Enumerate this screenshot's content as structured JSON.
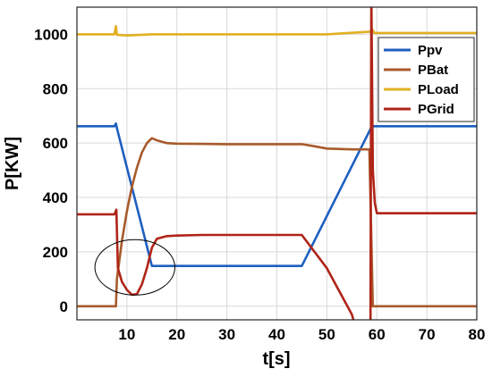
{
  "chart_data": {
    "type": "line",
    "title": "",
    "xlabel": "t[s]",
    "ylabel": "P[KW]",
    "xlim": [
      0,
      80
    ],
    "ylim": [
      -50,
      1100
    ],
    "xticks": [
      10,
      20,
      30,
      40,
      50,
      60,
      70,
      80
    ],
    "yticks": [
      0,
      200,
      400,
      600,
      800,
      1000
    ],
    "grid": true,
    "legend_position": "top-right",
    "series": [
      {
        "name": "Ppv",
        "color": "#1f5fbf",
        "x": [
          0,
          7.5,
          7.8,
          8,
          15,
          45,
          59,
          60,
          80
        ],
        "y": [
          662,
          662,
          672,
          655,
          148,
          148,
          662,
          662,
          662
        ]
      },
      {
        "name": "PBat",
        "color": "#a85a2a",
        "x": [
          0,
          7.8,
          8,
          9,
          10,
          11,
          12,
          13,
          14,
          15,
          16,
          18,
          20,
          25,
          30,
          40,
          45,
          47,
          50,
          55,
          58.5,
          59.2,
          60,
          80
        ],
        "y": [
          0,
          0,
          100,
          240,
          350,
          440,
          510,
          565,
          600,
          618,
          610,
          600,
          598,
          597,
          596,
          596,
          596,
          590,
          580,
          577,
          577,
          0,
          0,
          0
        ]
      },
      {
        "name": "PLoad",
        "color": "#e0b020",
        "x": [
          0,
          7.5,
          7.8,
          8,
          10,
          15,
          20,
          50,
          58.8,
          59,
          59.5,
          80
        ],
        "y": [
          1000,
          1000,
          1030,
          998,
          996,
          1000,
          1000,
          1000,
          1010,
          1020,
          1005,
          1005
        ]
      },
      {
        "name": "PGrid",
        "color": "#b02418",
        "x": [
          0,
          7.5,
          7.9,
          8.2,
          9,
          10,
          11,
          12,
          13,
          14,
          15,
          16,
          18,
          20,
          25,
          45,
          50,
          55,
          58.7,
          58.9,
          59.2,
          59.6,
          60,
          80
        ],
        "y": [
          338,
          338,
          355,
          140,
          90,
          60,
          42,
          45,
          80,
          140,
          215,
          248,
          258,
          260,
          262,
          262,
          140,
          -30,
          -260,
          1150,
          500,
          380,
          342,
          342
        ]
      }
    ],
    "annotations": [
      {
        "type": "ellipse",
        "cx": 11.6,
        "cy": 143,
        "rx": 8,
        "ry": 102
      }
    ]
  }
}
